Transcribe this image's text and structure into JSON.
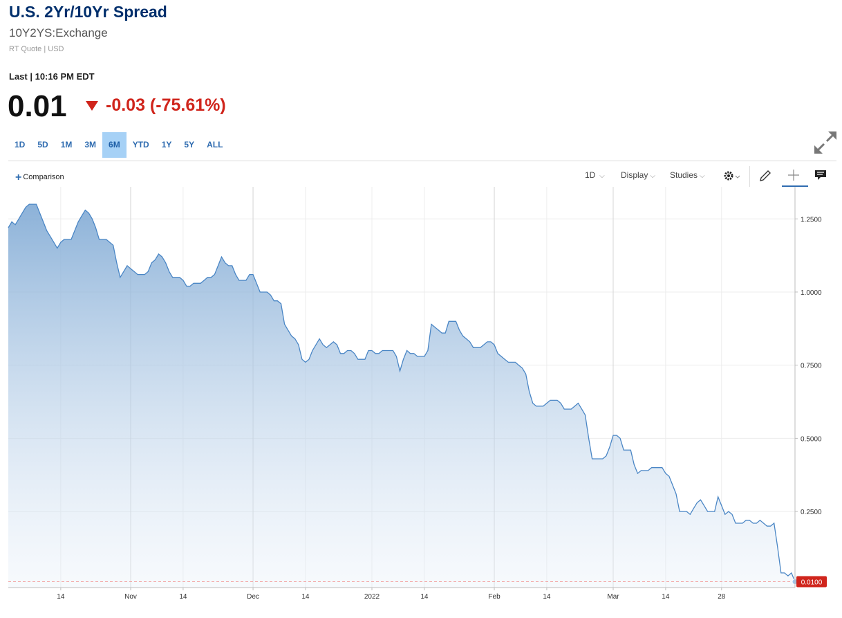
{
  "header": {
    "title": "U.S. 2Yr/10Yr Spread",
    "symbol": "10Y2YS:Exchange",
    "meta": "RT Quote | USD",
    "last_label": "Last | 10:16 PM EDT",
    "price": "0.01",
    "change": "-0.03 (-75.61%)",
    "change_color": "#d0251c"
  },
  "ranges": [
    "1D",
    "5D",
    "1M",
    "3M",
    "6M",
    "YTD",
    "1Y",
    "5Y",
    "ALL"
  ],
  "active_range": "6M",
  "toolbar": {
    "comparison": "Comparison",
    "interval": "1D",
    "display": "Display",
    "studies": "Studies",
    "icons": [
      "gear-icon",
      "pencil-icon",
      "crosshair-icon",
      "chat-icon",
      "expand-icon"
    ]
  },
  "chart_data": {
    "type": "area",
    "color": "#4a86c5",
    "y_axis_side": "right",
    "ylim": [
      -0.01,
      1.35
    ],
    "y_ticks": [
      0.25,
      0.5,
      0.75,
      1.0,
      1.25
    ],
    "y_tick_labels": [
      "0.2500",
      "0.5000",
      "0.7500",
      "1.0000",
      "1.2500"
    ],
    "x_tick_labels": [
      "14",
      "Nov",
      "14",
      "Dec",
      "14",
      "2022",
      "14",
      "Feb",
      "14",
      "Mar",
      "14",
      "28"
    ],
    "x_tick_index": [
      15,
      35,
      50,
      70,
      85,
      104,
      119,
      139,
      154,
      173,
      188,
      204
    ],
    "last_value": 0.01,
    "last_value_label": "0.0100",
    "last_value_color": "#d0251c",
    "values": [
      1.22,
      1.24,
      1.23,
      1.25,
      1.27,
      1.29,
      1.3,
      1.3,
      1.3,
      1.27,
      1.24,
      1.21,
      1.19,
      1.17,
      1.15,
      1.17,
      1.18,
      1.18,
      1.18,
      1.21,
      1.24,
      1.26,
      1.28,
      1.27,
      1.25,
      1.22,
      1.18,
      1.18,
      1.18,
      1.17,
      1.16,
      1.1,
      1.05,
      1.07,
      1.09,
      1.08,
      1.07,
      1.06,
      1.06,
      1.06,
      1.07,
      1.1,
      1.11,
      1.13,
      1.12,
      1.1,
      1.07,
      1.05,
      1.05,
      1.05,
      1.04,
      1.02,
      1.02,
      1.03,
      1.03,
      1.03,
      1.04,
      1.05,
      1.05,
      1.06,
      1.09,
      1.12,
      1.1,
      1.09,
      1.09,
      1.06,
      1.04,
      1.04,
      1.04,
      1.06,
      1.06,
      1.03,
      1.0,
      1.0,
      1.0,
      0.99,
      0.97,
      0.97,
      0.96,
      0.89,
      0.87,
      0.85,
      0.84,
      0.82,
      0.77,
      0.76,
      0.77,
      0.8,
      0.82,
      0.84,
      0.82,
      0.81,
      0.82,
      0.83,
      0.82,
      0.79,
      0.79,
      0.8,
      0.8,
      0.79,
      0.77,
      0.77,
      0.77,
      0.8,
      0.8,
      0.79,
      0.79,
      0.8,
      0.8,
      0.8,
      0.8,
      0.78,
      0.73,
      0.77,
      0.8,
      0.79,
      0.79,
      0.78,
      0.78,
      0.78,
      0.8,
      0.89,
      0.88,
      0.87,
      0.86,
      0.86,
      0.9,
      0.9,
      0.9,
      0.87,
      0.85,
      0.84,
      0.83,
      0.81,
      0.81,
      0.81,
      0.82,
      0.83,
      0.83,
      0.82,
      0.79,
      0.78,
      0.77,
      0.76,
      0.76,
      0.76,
      0.75,
      0.74,
      0.72,
      0.66,
      0.62,
      0.61,
      0.61,
      0.61,
      0.62,
      0.63,
      0.63,
      0.63,
      0.62,
      0.6,
      0.6,
      0.6,
      0.61,
      0.62,
      0.6,
      0.58,
      0.5,
      0.43,
      0.43,
      0.43,
      0.43,
      0.44,
      0.47,
      0.51,
      0.51,
      0.5,
      0.46,
      0.46,
      0.46,
      0.41,
      0.38,
      0.39,
      0.39,
      0.39,
      0.4,
      0.4,
      0.4,
      0.4,
      0.38,
      0.37,
      0.34,
      0.31,
      0.25,
      0.25,
      0.25,
      0.24,
      0.26,
      0.28,
      0.29,
      0.27,
      0.25,
      0.25,
      0.25,
      0.3,
      0.27,
      0.24,
      0.25,
      0.24,
      0.21,
      0.21,
      0.21,
      0.22,
      0.22,
      0.21,
      0.21,
      0.22,
      0.21,
      0.2,
      0.2,
      0.21,
      0.13,
      0.04,
      0.04,
      0.03,
      0.04,
      0.01
    ]
  }
}
